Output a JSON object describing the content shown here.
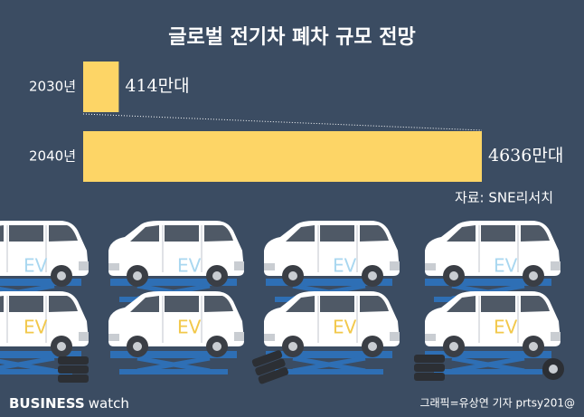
{
  "chart_data": {
    "type": "bar",
    "title": "글로벌 전기차 폐차 규모 전망",
    "categories": [
      "2030년",
      "2040년"
    ],
    "values": [
      414,
      4636
    ],
    "value_labels": [
      "414만대",
      "4636만대"
    ],
    "color": "#fdd566",
    "source": "자료: SNE리서치"
  },
  "illustration": {
    "car_label": "EV"
  },
  "footer": {
    "brand_bold": "BUSINESS",
    "brand_light": "watch",
    "credit": "그래픽=유상연 기자 prtsy201@"
  }
}
